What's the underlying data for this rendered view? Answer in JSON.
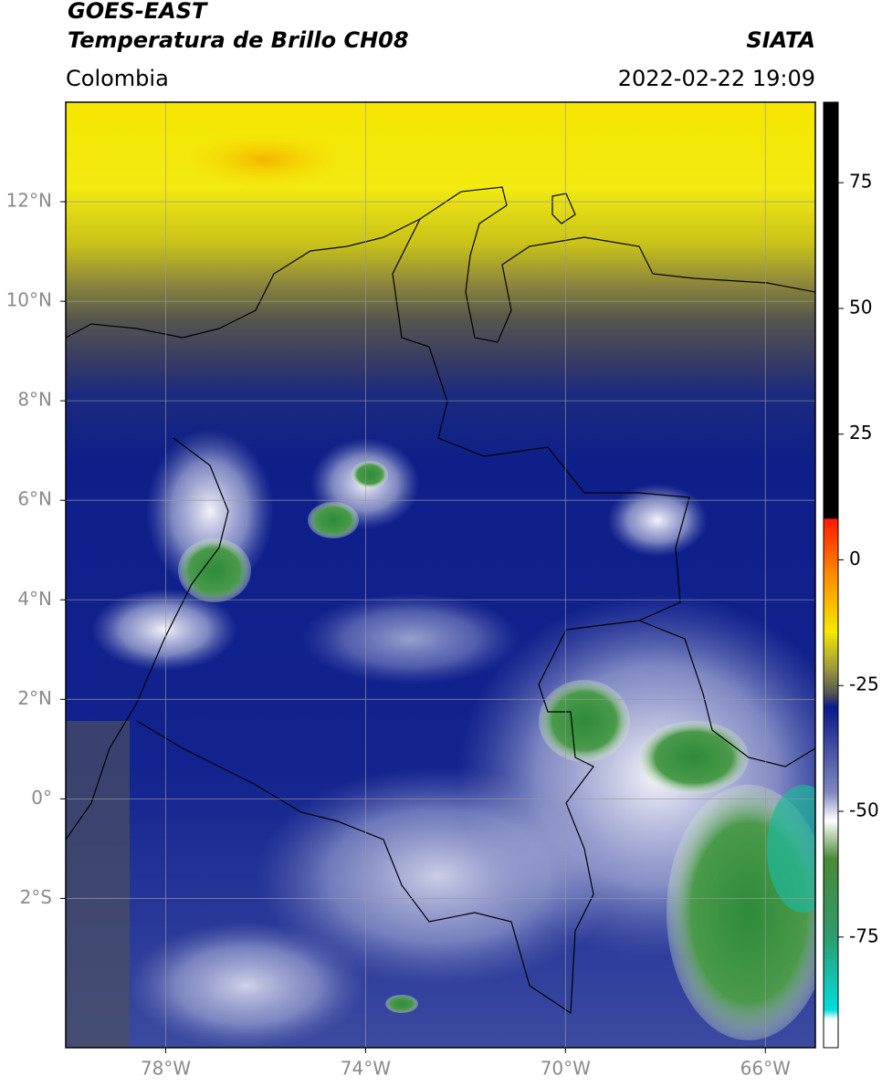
{
  "title": "GOES-EAST",
  "subtitle": "Temperatura de Brillo CH08",
  "source": "SIATA",
  "region": "Colombia",
  "datetime": "2022-02-22 19:09",
  "map": {
    "xlim": [
      -80,
      -65
    ],
    "ylim": [
      -5,
      14
    ],
    "xticks": [
      {
        "value": -78,
        "label": "78°W"
      },
      {
        "value": -74,
        "label": "74°W"
      },
      {
        "value": -70,
        "label": "70°W"
      },
      {
        "value": -66,
        "label": "66°W"
      }
    ],
    "yticks": [
      {
        "value": 12,
        "label": "12°N"
      },
      {
        "value": 10,
        "label": "10°N"
      },
      {
        "value": 8,
        "label": "8°N"
      },
      {
        "value": 6,
        "label": "6°N"
      },
      {
        "value": 4,
        "label": "4°N"
      },
      {
        "value": 2,
        "label": "2°N"
      },
      {
        "value": 0,
        "label": "0°"
      },
      {
        "value": -2,
        "label": "2°S"
      }
    ],
    "grid": true
  },
  "colorbar": {
    "lim": [
      -97,
      91
    ],
    "ticks": [
      75,
      50,
      25,
      0,
      -25,
      -50,
      -75
    ]
  }
}
